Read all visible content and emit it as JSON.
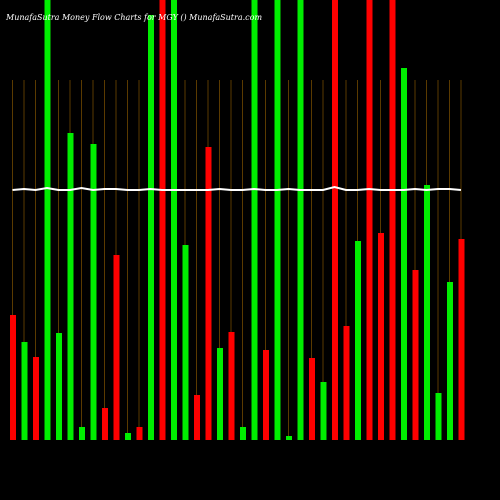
{
  "chart_data": {
    "type": "bar",
    "title": "MunafaSutra  Money Flow  Charts for MGY  () MunafaSutra.com",
    "ylim": [
      0,
      440
    ],
    "grid": true,
    "grid_color": "#5a3a00",
    "line_color": "#ffffff",
    "series": [
      {
        "name": "flow",
        "values": [
          125,
          98,
          83,
          440,
          107,
          307,
          13,
          296,
          32,
          185,
          7,
          13,
          425,
          440,
          440,
          195,
          45,
          293,
          92,
          108,
          13,
          440,
          90,
          440,
          4,
          440,
          82,
          58,
          440,
          114,
          199,
          440,
          207,
          440,
          372,
          170,
          255,
          47,
          158,
          201
        ],
        "colors": [
          "#ff0000",
          "#00ee00",
          "#ff0000",
          "#00ee00",
          "#00ee00",
          "#00ee00",
          "#00ee00",
          "#00ee00",
          "#ff0000",
          "#ff0000",
          "#00ee00",
          "#ff0000",
          "#00ee00",
          "#ff0000",
          "#00ee00",
          "#00ee00",
          "#ff0000",
          "#ff0000",
          "#00ee00",
          "#ff0000",
          "#00ee00",
          "#00ee00",
          "#ff0000",
          "#00ee00",
          "#00ee00",
          "#00ee00",
          "#ff0000",
          "#00ee00",
          "#ff0000",
          "#ff0000",
          "#00ee00",
          "#ff0000",
          "#ff0000",
          "#ff0000",
          "#00ee00",
          "#ff0000",
          "#00ee00",
          "#00ee00",
          "#00ee00",
          "#ff0000"
        ]
      },
      {
        "name": "line",
        "values": [
          250,
          251,
          250,
          252,
          250,
          250,
          252,
          250,
          251,
          251,
          250,
          250,
          251,
          250,
          250,
          250,
          250,
          250,
          251,
          250,
          250,
          251,
          250,
          250,
          251,
          250,
          250,
          250,
          253,
          250,
          250,
          251,
          250,
          250,
          250,
          251,
          250,
          251,
          251,
          250
        ]
      }
    ]
  }
}
